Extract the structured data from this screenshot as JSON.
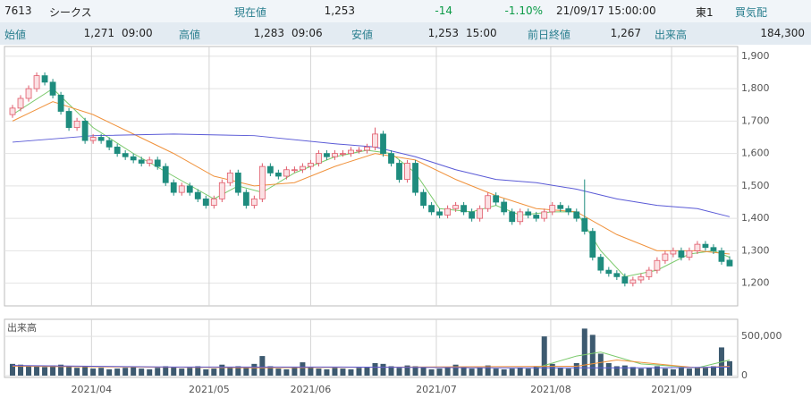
{
  "header": {
    "row1": [
      "7613",
      "シークス",
      "現在値",
      "1,253",
      "-14",
      "-1.10%",
      "21/09/17 15:00:00",
      "東1",
      "買気配"
    ],
    "row2": [
      "始値",
      "1,271",
      "09:00",
      "高値",
      "1,283",
      "09:06",
      "安値",
      "1,253",
      "15:00",
      "前日終値",
      "1,267",
      "出来高",
      "184,300"
    ]
  },
  "chart_data": [
    {
      "type": "candlestick",
      "ylim": [
        1130,
        1930
      ],
      "yticks": [
        {
          "value": 1200,
          "label": "1,200"
        },
        {
          "value": 1300,
          "label": "1,300"
        },
        {
          "value": 1400,
          "label": "1,400"
        },
        {
          "value": 1500,
          "label": "1,500"
        },
        {
          "value": 1600,
          "label": "1,600"
        },
        {
          "value": 1700,
          "label": "1,700"
        },
        {
          "value": 1800,
          "label": "1,800"
        },
        {
          "value": 1900,
          "label": "1,900"
        }
      ],
      "xlim": [
        -1,
        90
      ],
      "xticks": [
        {
          "value": 9.8,
          "label": "2021/04"
        },
        {
          "value": 24.4,
          "label": "2021/05"
        },
        {
          "value": 37,
          "label": "2021/06"
        },
        {
          "value": 52.6,
          "label": "2021/07"
        },
        {
          "value": 66.8,
          "label": "2021/08"
        },
        {
          "value": 81.8,
          "label": "2021/09"
        }
      ],
      "grid": true,
      "up_color": "#e05a6a",
      "up_fill": "#fbe1e4",
      "down_color": "#1e8c7e",
      "open": [
        1720,
        1740,
        1770,
        1800,
        1840,
        1820,
        1780,
        1730,
        1680,
        1700,
        1640,
        1650,
        1640,
        1620,
        1600,
        1590,
        1580,
        1570,
        1580,
        1560,
        1510,
        1480,
        1500,
        1480,
        1460,
        1440,
        1460,
        1510,
        1540,
        1480,
        1440,
        1460,
        1560,
        1540,
        1530,
        1550,
        1550,
        1560,
        1570,
        1600,
        1590,
        1600,
        1600,
        1610,
        1610,
        1620,
        1660,
        1600,
        1570,
        1520,
        1570,
        1480,
        1440,
        1420,
        1410,
        1430,
        1440,
        1420,
        1400,
        1430,
        1470,
        1450,
        1420,
        1390,
        1420,
        1410,
        1400,
        1420,
        1440,
        1430,
        1420,
        1400,
        1360,
        1280,
        1240,
        1230,
        1220,
        1200,
        1210,
        1220,
        1240,
        1270,
        1290,
        1300,
        1280,
        1300,
        1320,
        1310,
        1300,
        1271
      ],
      "high": [
        1750,
        1780,
        1810,
        1850,
        1850,
        1830,
        1790,
        1740,
        1710,
        1710,
        1660,
        1660,
        1650,
        1630,
        1610,
        1600,
        1590,
        1590,
        1590,
        1570,
        1520,
        1510,
        1510,
        1490,
        1470,
        1470,
        1520,
        1550,
        1550,
        1490,
        1470,
        1570,
        1570,
        1550,
        1560,
        1560,
        1570,
        1580,
        1610,
        1610,
        1610,
        1610,
        1620,
        1620,
        1630,
        1680,
        1670,
        1610,
        1580,
        1580,
        1580,
        1490,
        1450,
        1430,
        1440,
        1450,
        1450,
        1430,
        1440,
        1480,
        1480,
        1460,
        1430,
        1430,
        1430,
        1420,
        1430,
        1450,
        1450,
        1440,
        1430,
        1520,
        1370,
        1290,
        1250,
        1240,
        1230,
        1220,
        1230,
        1250,
        1280,
        1300,
        1310,
        1310,
        1310,
        1330,
        1330,
        1320,
        1310,
        1283
      ],
      "low": [
        1710,
        1730,
        1760,
        1790,
        1810,
        1770,
        1720,
        1670,
        1670,
        1630,
        1630,
        1630,
        1610,
        1590,
        1580,
        1570,
        1560,
        1560,
        1550,
        1500,
        1470,
        1470,
        1470,
        1450,
        1430,
        1430,
        1450,
        1500,
        1470,
        1430,
        1430,
        1450,
        1530,
        1520,
        1520,
        1540,
        1540,
        1550,
        1560,
        1580,
        1580,
        1590,
        1590,
        1600,
        1600,
        1610,
        1590,
        1560,
        1510,
        1510,
        1470,
        1430,
        1410,
        1400,
        1400,
        1420,
        1410,
        1390,
        1390,
        1420,
        1440,
        1410,
        1380,
        1380,
        1400,
        1390,
        1390,
        1410,
        1420,
        1410,
        1390,
        1350,
        1270,
        1230,
        1220,
        1210,
        1190,
        1190,
        1200,
        1210,
        1230,
        1260,
        1280,
        1270,
        1270,
        1290,
        1300,
        1290,
        1257,
        1253
      ],
      "close": [
        1740,
        1770,
        1800,
        1840,
        1820,
        1780,
        1730,
        1680,
        1700,
        1640,
        1650,
        1640,
        1620,
        1600,
        1590,
        1580,
        1570,
        1580,
        1560,
        1510,
        1480,
        1500,
        1480,
        1460,
        1440,
        1460,
        1510,
        1540,
        1480,
        1440,
        1460,
        1560,
        1540,
        1530,
        1550,
        1550,
        1560,
        1570,
        1600,
        1590,
        1600,
        1600,
        1610,
        1610,
        1620,
        1660,
        1600,
        1570,
        1520,
        1570,
        1480,
        1440,
        1420,
        1410,
        1430,
        1440,
        1420,
        1400,
        1430,
        1470,
        1450,
        1420,
        1390,
        1420,
        1410,
        1400,
        1420,
        1440,
        1430,
        1420,
        1400,
        1360,
        1280,
        1240,
        1230,
        1220,
        1200,
        1210,
        1220,
        1240,
        1270,
        1290,
        1300,
        1280,
        1300,
        1320,
        1310,
        1300,
        1267,
        1253
      ],
      "lines": [
        {
          "color": "#7ac96b",
          "x": [
            0,
            5,
            10,
            15,
            20,
            25,
            28,
            31,
            35,
            40,
            44,
            47,
            50,
            53,
            57,
            60,
            63,
            67,
            70,
            73,
            76,
            80,
            84,
            87,
            89
          ],
          "values": [
            1720,
            1800,
            1680,
            1600,
            1530,
            1460,
            1500,
            1480,
            1540,
            1590,
            1610,
            1600,
            1540,
            1430,
            1420,
            1440,
            1410,
            1420,
            1420,
            1300,
            1220,
            1240,
            1290,
            1300,
            1280
          ]
        },
        {
          "color": "#f0923c",
          "x": [
            0,
            5,
            10,
            15,
            20,
            25,
            30,
            35,
            40,
            45,
            50,
            55,
            60,
            65,
            70,
            75,
            80,
            85,
            89
          ],
          "values": [
            1700,
            1760,
            1720,
            1660,
            1600,
            1530,
            1500,
            1510,
            1560,
            1600,
            1580,
            1520,
            1470,
            1430,
            1420,
            1350,
            1300,
            1300,
            1290
          ]
        },
        {
          "color": "#5a5ad6",
          "x": [
            0,
            10,
            20,
            30,
            40,
            45,
            50,
            55,
            60,
            65,
            70,
            75,
            80,
            85,
            89
          ],
          "values": [
            1635,
            1655,
            1660,
            1655,
            1630,
            1620,
            1590,
            1550,
            1520,
            1510,
            1490,
            1460,
            1440,
            1430,
            1405
          ]
        }
      ]
    },
    {
      "type": "volume",
      "label": "出来高",
      "ylim": [
        0,
        650000
      ],
      "xlim": [
        -1,
        90
      ],
      "yticks": [
        0,
        {
          "value": 500000,
          "label": "500,000"
        }
      ],
      "grid": true,
      "color": "#3d5a70",
      "values": [
        150000,
        140000,
        130000,
        120000,
        110000,
        130000,
        140000,
        120000,
        100000,
        110000,
        90000,
        100000,
        80000,
        90000,
        100000,
        110000,
        90000,
        80000,
        100000,
        120000,
        110000,
        90000,
        100000,
        120000,
        80000,
        90000,
        140000,
        110000,
        120000,
        100000,
        150000,
        250000,
        120000,
        90000,
        80000,
        100000,
        170000,
        110000,
        90000,
        80000,
        100000,
        90000,
        80000,
        100000,
        110000,
        160000,
        150000,
        120000,
        100000,
        130000,
        120000,
        110000,
        80000,
        90000,
        100000,
        140000,
        110000,
        90000,
        100000,
        130000,
        90000,
        80000,
        90000,
        100000,
        90000,
        120000,
        500000,
        150000,
        100000,
        90000,
        160000,
        600000,
        520000,
        280000,
        160000,
        120000,
        130000,
        110000,
        90000,
        100000,
        120000,
        90000,
        80000,
        100000,
        90000,
        110000,
        100000,
        120000,
        360000,
        184300
      ],
      "lines": [
        {
          "color": "#7ac96b",
          "x": [
            65,
            70,
            73,
            78,
            85,
            89
          ],
          "values": [
            100000,
            250000,
            300000,
            150000,
            100000,
            200000
          ]
        },
        {
          "color": "#f0923c",
          "x": [
            0,
            30,
            50,
            70,
            75,
            85,
            89
          ],
          "values": [
            120000,
            100000,
            110000,
            120000,
            200000,
            100000,
            120000
          ]
        },
        {
          "color": "#5a5ad6",
          "x": [
            0,
            20,
            40,
            60,
            80,
            89
          ],
          "values": [
            130000,
            110000,
            110000,
            100000,
            100000,
            110000
          ]
        }
      ]
    }
  ]
}
